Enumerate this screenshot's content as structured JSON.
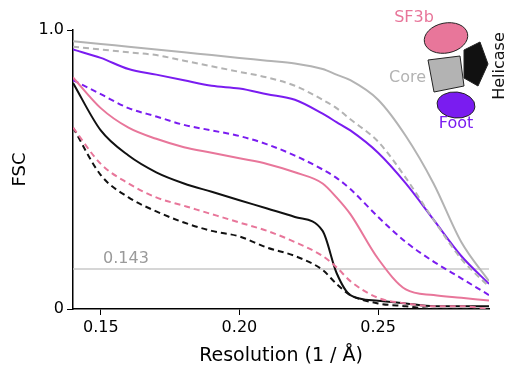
{
  "chart_data": {
    "type": "line",
    "x_label": "Resolution (1 / Å)",
    "y_label": "FSC",
    "x": [
      0.14,
      0.15,
      0.16,
      0.17,
      0.18,
      0.19,
      0.2,
      0.21,
      0.22,
      0.23,
      0.235,
      0.24,
      0.25,
      0.26,
      0.27,
      0.28,
      0.29
    ],
    "series": [
      {
        "name": "SF3b",
        "color": "#e8769a",
        "line_style": "solid",
        "values": [
          0.83,
          0.72,
          0.65,
          0.61,
          0.58,
          0.56,
          0.54,
          0.52,
          0.49,
          0.45,
          0.4,
          0.34,
          0.18,
          0.07,
          0.05,
          0.04,
          0.03
        ]
      },
      {
        "name": "SF3b",
        "color": "#e8769a",
        "line_style": "dashed",
        "values": [
          0.65,
          0.52,
          0.45,
          0.4,
          0.37,
          0.34,
          0.31,
          0.28,
          0.24,
          0.19,
          0.15,
          0.1,
          0.04,
          0.02,
          0.01,
          0.01,
          0.0
        ]
      },
      {
        "name": "Helicase",
        "color": "#111111",
        "line_style": "solid",
        "values": [
          0.81,
          0.64,
          0.55,
          0.49,
          0.45,
          0.42,
          0.39,
          0.36,
          0.33,
          0.28,
          0.13,
          0.05,
          0.03,
          0.02,
          0.01,
          0.01,
          0.01
        ]
      },
      {
        "name": "Helicase",
        "color": "#111111",
        "line_style": "dashed",
        "values": [
          0.65,
          0.48,
          0.4,
          0.35,
          0.31,
          0.28,
          0.26,
          0.22,
          0.19,
          0.14,
          0.09,
          0.05,
          0.02,
          0.01,
          0.0,
          0.0,
          0.0
        ]
      },
      {
        "name": "Core",
        "color": "#b3b3b3",
        "line_style": "solid",
        "values": [
          0.96,
          0.95,
          0.94,
          0.93,
          0.92,
          0.91,
          0.9,
          0.89,
          0.88,
          0.86,
          0.84,
          0.82,
          0.75,
          0.62,
          0.45,
          0.24,
          0.1
        ]
      },
      {
        "name": "Core",
        "color": "#b3b3b3",
        "line_style": "dashed",
        "values": [
          0.94,
          0.93,
          0.92,
          0.91,
          0.89,
          0.87,
          0.85,
          0.83,
          0.8,
          0.75,
          0.72,
          0.68,
          0.6,
          0.47,
          0.32,
          0.18,
          0.08
        ]
      },
      {
        "name": "Foot",
        "color": "#7a1cf0",
        "line_style": "solid",
        "values": [
          0.93,
          0.9,
          0.86,
          0.84,
          0.82,
          0.8,
          0.79,
          0.77,
          0.75,
          0.7,
          0.67,
          0.64,
          0.56,
          0.45,
          0.32,
          0.19,
          0.09
        ]
      },
      {
        "name": "Foot",
        "color": "#7a1cf0",
        "line_style": "dashed",
        "values": [
          0.82,
          0.77,
          0.72,
          0.69,
          0.66,
          0.64,
          0.62,
          0.59,
          0.55,
          0.5,
          0.47,
          0.43,
          0.33,
          0.24,
          0.17,
          0.11,
          0.05
        ]
      }
    ],
    "xlim": [
      0.14,
      0.29
    ],
    "ylim": [
      0,
      1
    ],
    "xticks": [
      {
        "value": 0.15,
        "label": "0.15"
      },
      {
        "value": 0.2,
        "label": "0.20"
      },
      {
        "value": 0.25,
        "label": "0.25"
      }
    ],
    "yticks": [
      0,
      {
        "value": 1,
        "label": "1.0"
      }
    ],
    "grid": false,
    "legend": "top right",
    "annotations": [
      {
        "type": "hline",
        "y": 0.143,
        "text": "0.143"
      }
    ]
  }
}
